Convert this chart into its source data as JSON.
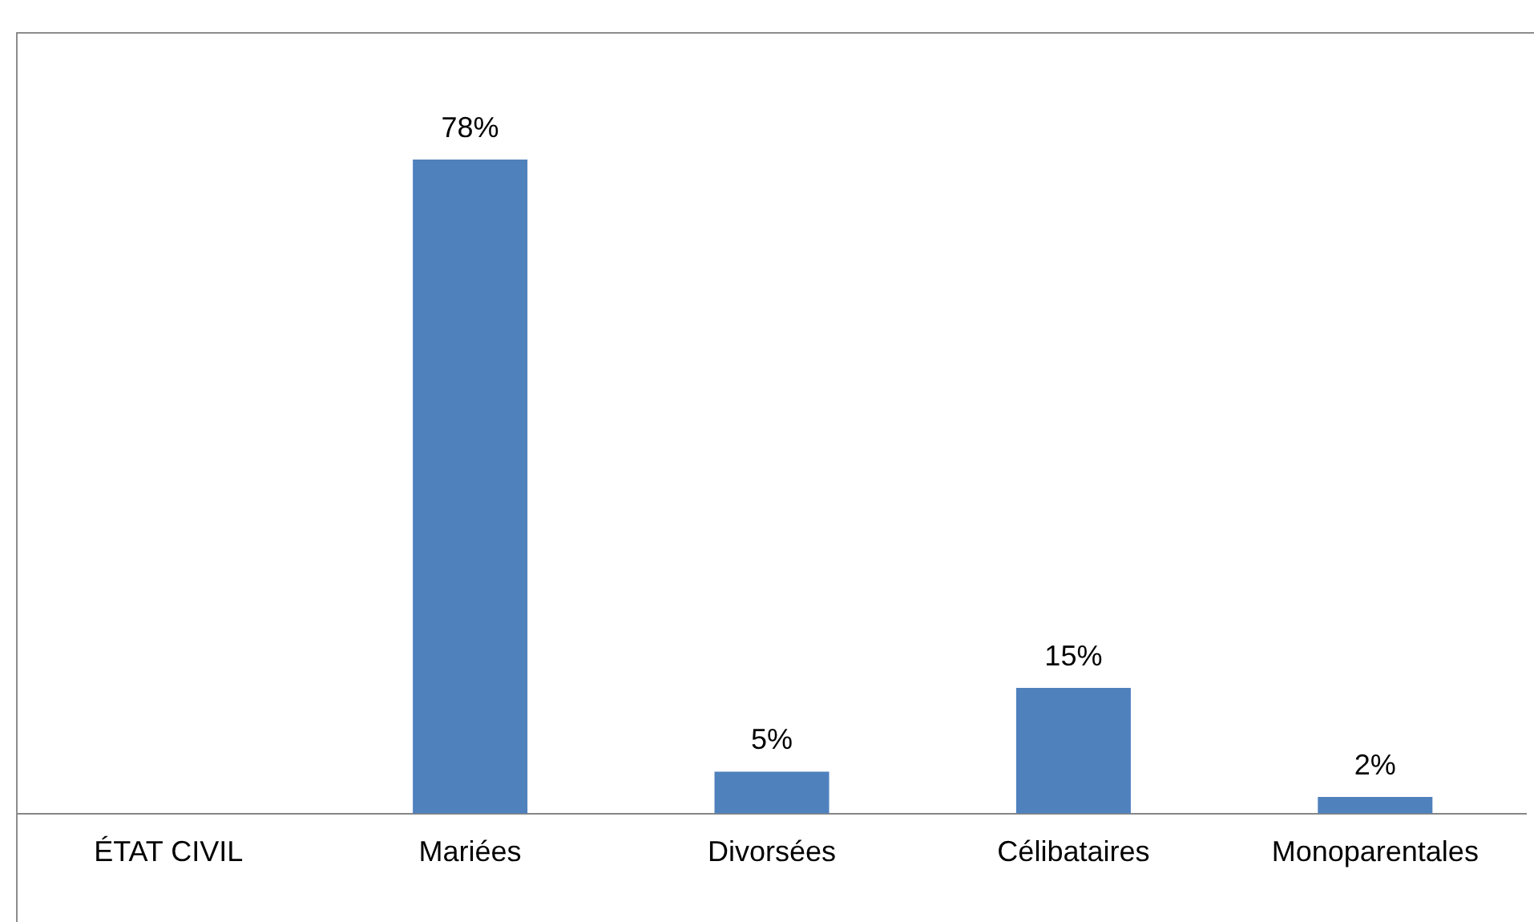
{
  "chart_data": {
    "type": "bar",
    "categories": [
      "ÉTAT CIVIL",
      "Mariées",
      "Divorsées",
      "Célibataires",
      "Monoparentales"
    ],
    "values": [
      null,
      78,
      5,
      15,
      2
    ],
    "value_labels": [
      null,
      "78%",
      "5%",
      "15%",
      "2%"
    ],
    "color": "#4f81bd",
    "grid": false,
    "legend": false
  }
}
